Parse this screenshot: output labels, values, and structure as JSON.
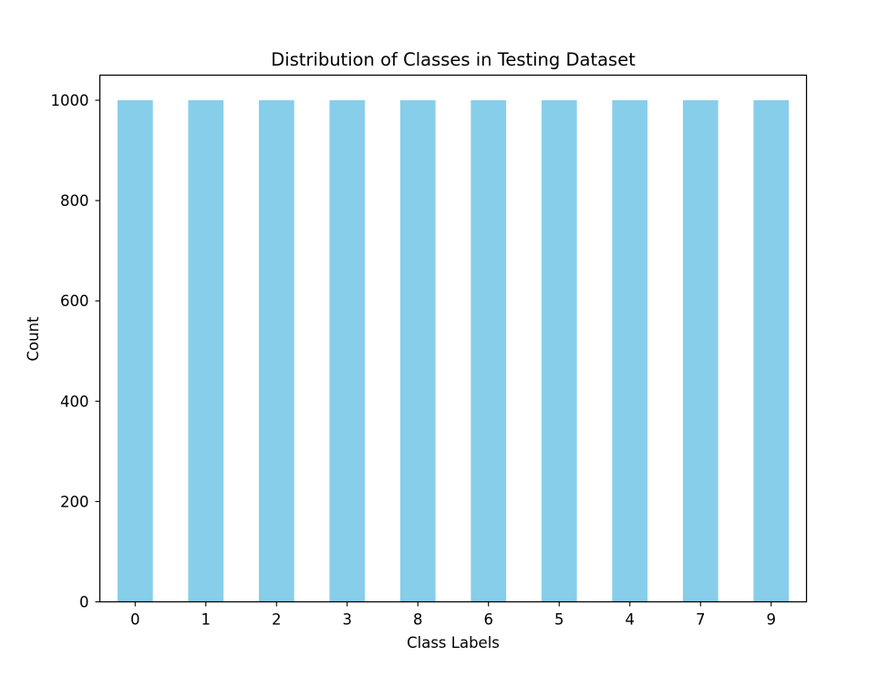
{
  "chart_data": {
    "type": "bar",
    "title": "Distribution of Classes in Testing Dataset",
    "xlabel": "Class Labels",
    "ylabel": "Count",
    "categories": [
      "0",
      "1",
      "2",
      "3",
      "8",
      "6",
      "5",
      "4",
      "7",
      "9"
    ],
    "values": [
      1000,
      1000,
      1000,
      1000,
      1000,
      1000,
      1000,
      1000,
      1000,
      1000
    ],
    "ylim": [
      0,
      1050
    ],
    "yticks": [
      0,
      200,
      400,
      600,
      800,
      1000
    ],
    "bar_color": "#87CEEB",
    "grid": false,
    "legend": false
  }
}
